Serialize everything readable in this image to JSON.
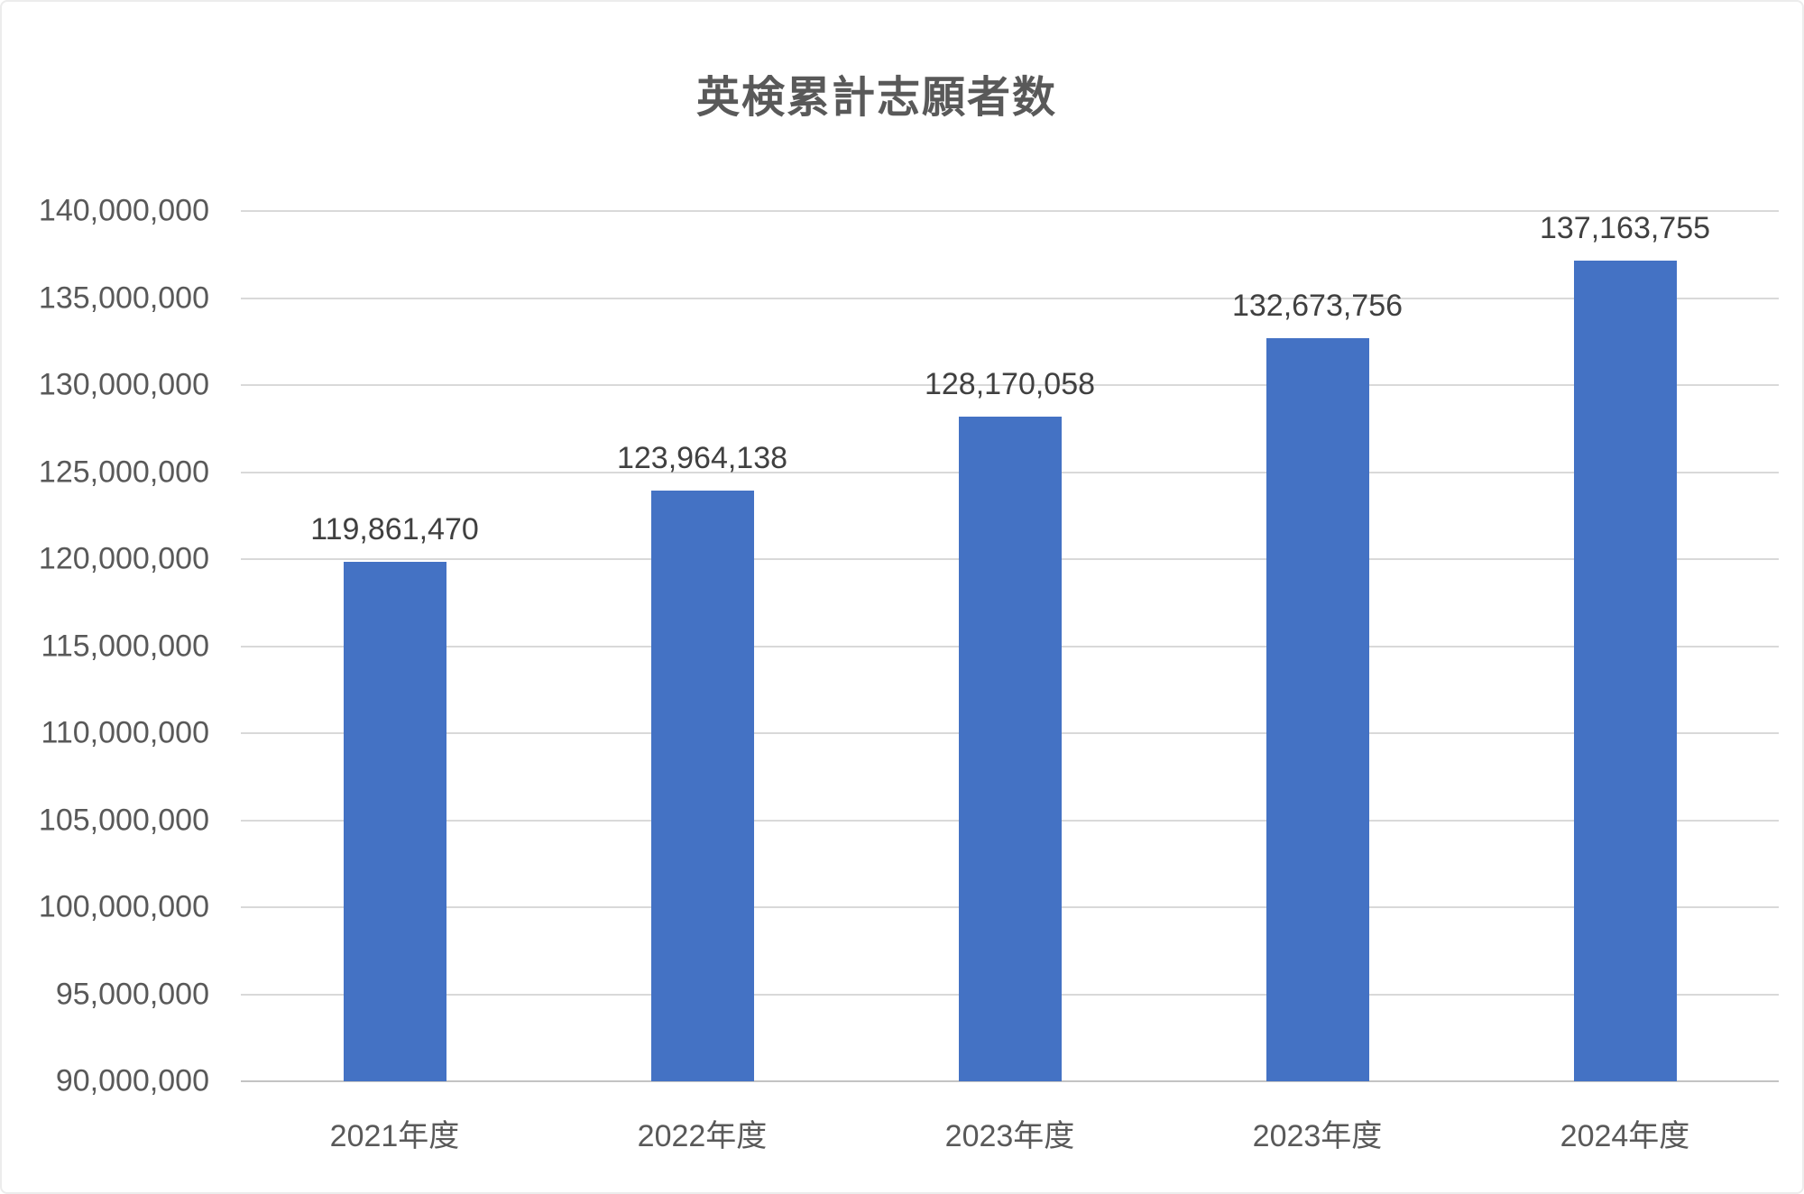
{
  "title": "英検累計志願者数",
  "chart_data": {
    "type": "bar",
    "title": "英検累計志願者数",
    "categories": [
      "2021年度",
      "2022年度",
      "2023年度",
      "2023年度",
      "2024年度"
    ],
    "values": [
      119861470,
      123964138,
      128170058,
      132673756,
      137163755
    ],
    "value_labels": [
      "119,861,470",
      "123,964,138",
      "128,170,058",
      "132,673,756",
      "137,163,755"
    ],
    "xlabel": "",
    "ylabel": "",
    "ylim": [
      90000000,
      140000000
    ],
    "ytick_step": 5000000,
    "yticks": [
      {
        "value": 90000000,
        "label": "90,000,000"
      },
      {
        "value": 95000000,
        "label": "95,000,000"
      },
      {
        "value": 100000000,
        "label": "100,000,000"
      },
      {
        "value": 105000000,
        "label": "105,000,000"
      },
      {
        "value": 110000000,
        "label": "110,000,000"
      },
      {
        "value": 115000000,
        "label": "115,000,000"
      },
      {
        "value": 120000000,
        "label": "120,000,000"
      },
      {
        "value": 125000000,
        "label": "125,000,000"
      },
      {
        "value": 130000000,
        "label": "130,000,000"
      },
      {
        "value": 135000000,
        "label": "135,000,000"
      },
      {
        "value": 140000000,
        "label": "140,000,000"
      }
    ],
    "grid": true,
    "legend": "none",
    "bar_color": "#4472C4",
    "gridline_color": "#D9D9D9",
    "axis_line_color": "#C3C3C3",
    "title_color": "#595959",
    "axis_label_color": "#595959",
    "data_label_color": "#404040"
  }
}
